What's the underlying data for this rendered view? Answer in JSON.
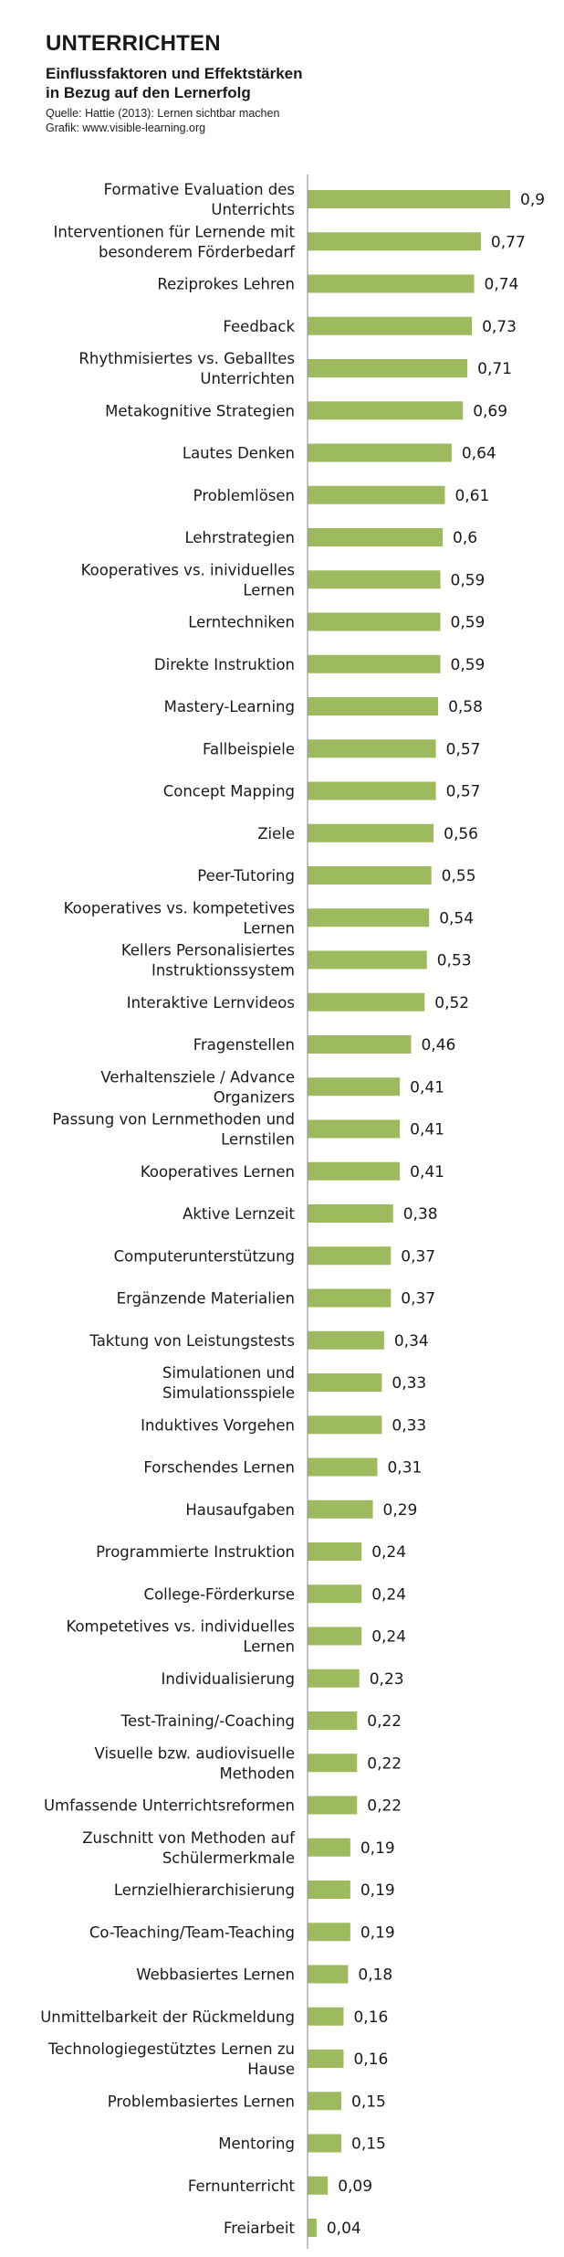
{
  "header": {
    "title": "UNTERRICHTEN",
    "subtitle_line1": "Einflussfaktoren und Effektstärken",
    "subtitle_line2": "in Bezug auf den Lernerfolg",
    "source_line1": "Quelle: Hattie (2013): Lernen sichtbar machen",
    "source_line2": "Grafik: www.visible-learning.org"
  },
  "chart_data": {
    "type": "bar",
    "orientation": "horizontal",
    "bar_color": "#9dbb5e",
    "axis_color": "#9a9a9a",
    "xlim": [
      0,
      0.9
    ],
    "grid": false,
    "legend": "none",
    "categories": [
      [
        "Formative Evaluation des",
        "Unterrichts"
      ],
      [
        "Interventionen für Lernende mit",
        "besonderem Förderbedarf"
      ],
      [
        "Reziprokes Lehren"
      ],
      [
        "Feedback"
      ],
      [
        "Rhythmisiertes vs. Geballtes",
        "Unterrichten"
      ],
      [
        "Metakognitive Strategien"
      ],
      [
        "Lautes Denken"
      ],
      [
        "Problemlösen"
      ],
      [
        "Lehrstrategien"
      ],
      [
        "Kooperatives vs. inividuelles",
        "Lernen"
      ],
      [
        "Lerntechniken"
      ],
      [
        "Direkte Instruktion"
      ],
      [
        "Mastery-Learning"
      ],
      [
        "Fallbeispiele"
      ],
      [
        "Concept Mapping"
      ],
      [
        "Ziele"
      ],
      [
        "Peer-Tutoring"
      ],
      [
        "Kooperatives vs. kompetetives",
        "Lernen"
      ],
      [
        "Kellers Personalisiertes",
        "Instruktionssystem"
      ],
      [
        "Interaktive Lernvideos"
      ],
      [
        "Fragenstellen"
      ],
      [
        "Verhaltensziele / Advance",
        "Organizers"
      ],
      [
        "Passung von Lernmethoden und",
        "Lernstilen"
      ],
      [
        "Kooperatives Lernen"
      ],
      [
        "Aktive Lernzeit"
      ],
      [
        "Computerunterstützung"
      ],
      [
        "Ergänzende Materialien"
      ],
      [
        "Taktung von Leistungstests"
      ],
      [
        "Simulationen und",
        "Simulationsspiele"
      ],
      [
        "Induktives Vorgehen"
      ],
      [
        "Forschendes Lernen"
      ],
      [
        "Hausaufgaben"
      ],
      [
        "Programmierte Instruktion"
      ],
      [
        "College-Förderkurse"
      ],
      [
        "Kompetetives vs. individuelles",
        "Lernen"
      ],
      [
        "Individualisierung"
      ],
      [
        "Test-Training/-Coaching"
      ],
      [
        "Visuelle bzw. audiovisuelle",
        "Methoden"
      ],
      [
        "Umfassende Unterrichtsreformen"
      ],
      [
        "Zuschnitt von Methoden auf",
        "Schülermerkmale"
      ],
      [
        "Lernzielhierarchisierung"
      ],
      [
        "Co-Teaching/Team-Teaching"
      ],
      [
        "Webbasiertes Lernen"
      ],
      [
        "Unmittelbarkeit der Rückmeldung"
      ],
      [
        "Technologiegestütztes Lernen zu",
        "Hause"
      ],
      [
        "Problembasiertes Lernen"
      ],
      [
        "Mentoring"
      ],
      [
        "Fernunterricht"
      ],
      [
        "Freiarbeit"
      ]
    ],
    "values": [
      0.9,
      0.77,
      0.74,
      0.73,
      0.71,
      0.69,
      0.64,
      0.61,
      0.6,
      0.59,
      0.59,
      0.59,
      0.58,
      0.57,
      0.57,
      0.56,
      0.55,
      0.54,
      0.53,
      0.52,
      0.46,
      0.41,
      0.41,
      0.41,
      0.38,
      0.37,
      0.37,
      0.34,
      0.33,
      0.33,
      0.31,
      0.29,
      0.24,
      0.24,
      0.24,
      0.23,
      0.22,
      0.22,
      0.22,
      0.19,
      0.19,
      0.19,
      0.18,
      0.16,
      0.16,
      0.15,
      0.15,
      0.09,
      0.04
    ],
    "value_labels": [
      "0,9",
      "0,77",
      "0,74",
      "0,73",
      "0,71",
      "0,69",
      "0,64",
      "0,61",
      "0,6",
      "0,59",
      "0,59",
      "0,59",
      "0,58",
      "0,57",
      "0,57",
      "0,56",
      "0,55",
      "0,54",
      "0,53",
      "0,52",
      "0,46",
      "0,41",
      "0,41",
      "0,41",
      "0,38",
      "0,37",
      "0,37",
      "0,34",
      "0,33",
      "0,33",
      "0,31",
      "0,29",
      "0,24",
      "0,24",
      "0,24",
      "0,23",
      "0,22",
      "0,22",
      "0,22",
      "0,19",
      "0,19",
      "0,19",
      "0,18",
      "0,16",
      "0,16",
      "0,15",
      "0,15",
      "0,09",
      "0,04"
    ]
  }
}
